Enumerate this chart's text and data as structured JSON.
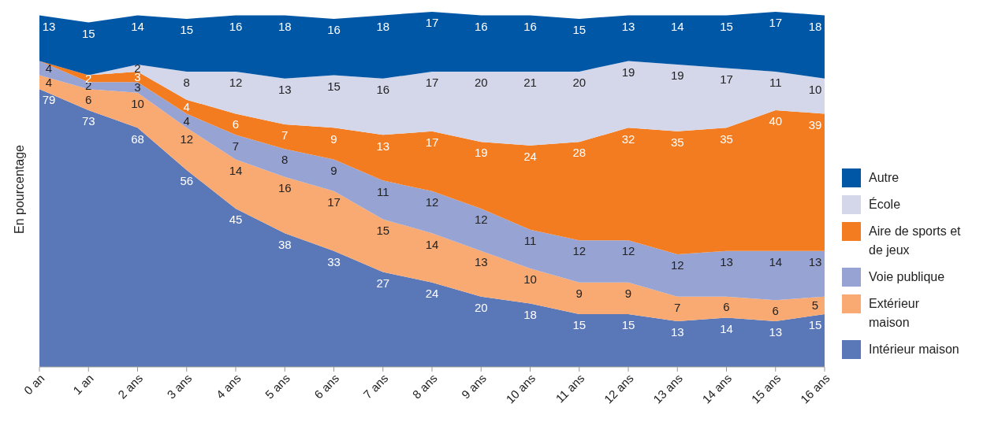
{
  "chart_data": {
    "type": "area",
    "stacked": true,
    "ylabel": "En pourcentage",
    "legend": "right",
    "categories": [
      "0 an",
      "1 an",
      "2 ans",
      "3 ans",
      "4 ans",
      "5 ans",
      "6 ans",
      "7 ans",
      "8 ans",
      "9 ans",
      "10 ans",
      "11 ans",
      "12 ans",
      "13 ans",
      "14 ans",
      "15 ans",
      "16 ans"
    ],
    "series": [
      {
        "name": "Intérieur maison",
        "color": "#5a77b8",
        "values": [
          79,
          73,
          68,
          56,
          45,
          38,
          33,
          27,
          24,
          20,
          18,
          15,
          15,
          13,
          14,
          13,
          15
        ],
        "value_labels": [
          "79",
          "73",
          "68",
          "56",
          "45",
          "38",
          "33",
          "27",
          "24",
          "20",
          "18",
          "15",
          "15",
          "13",
          "14",
          "13",
          "15"
        ]
      },
      {
        "name": "Extérieur maison",
        "color": "#f9aa72",
        "values": [
          4,
          6,
          10,
          12,
          14,
          16,
          17,
          15,
          14,
          13,
          10,
          9,
          9,
          7,
          6,
          6,
          5
        ],
        "value_labels": [
          "4",
          "6",
          "10",
          "12",
          "14",
          "16",
          "17",
          "15",
          "14",
          "13",
          "10",
          "9",
          "9",
          "7",
          "6",
          "6",
          "5"
        ]
      },
      {
        "name": "Voie publique",
        "color": "#97a3d3",
        "values": [
          4,
          2,
          3,
          4,
          7,
          8,
          9,
          11,
          12,
          12,
          11,
          12,
          12,
          12,
          13,
          14,
          13
        ],
        "value_labels": [
          "4",
          "2",
          "3",
          "4",
          "7",
          "8",
          "9",
          "11",
          "12",
          "12",
          "11",
          "12",
          "12",
          "12",
          "13",
          "14",
          "13"
        ]
      },
      {
        "name": "Aire de sports et de jeux",
        "color": "#f47c20",
        "values": [
          0,
          2,
          3,
          4,
          6,
          7,
          9,
          13,
          17,
          19,
          24,
          28,
          32,
          35,
          35,
          40,
          39
        ],
        "value_labels": [
          null,
          "2",
          "3",
          "4",
          "6",
          "7",
          "9",
          "13",
          "17",
          "19",
          "24",
          "28",
          "32",
          "35",
          "35",
          "40",
          "39"
        ]
      },
      {
        "name": "École",
        "color": "#d4d7ea",
        "values": [
          0,
          0,
          2,
          8,
          12,
          13,
          15,
          16,
          17,
          20,
          21,
          20,
          19,
          19,
          17,
          11,
          10
        ],
        "value_labels": [
          null,
          null,
          "2",
          "8",
          "12",
          "13",
          "15",
          "16",
          "17",
          "20",
          "21",
          "20",
          "19",
          "19",
          "17",
          "11",
          "10"
        ]
      },
      {
        "name": "Autre",
        "color": "#0057a6",
        "values": [
          13,
          15,
          14,
          15,
          16,
          18,
          16,
          18,
          17,
          16,
          16,
          15,
          13,
          14,
          15,
          17,
          18
        ],
        "value_labels": [
          "13",
          "15",
          "14",
          "15",
          "16",
          "18",
          "16",
          "18",
          "17",
          "16",
          "16",
          "15",
          "13",
          "14",
          "15",
          "17",
          "18"
        ]
      }
    ]
  }
}
